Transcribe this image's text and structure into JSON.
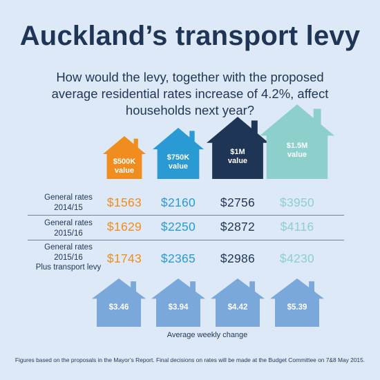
{
  "title": "Auckland’s transport levy",
  "subtitle": "How would the levy, together with the proposed average residential rates increase of 4.2%, affect households next year?",
  "colors": {
    "background": "#dde9f6",
    "text": "#1f3556",
    "weekly_house": "#7ba8da"
  },
  "chart_data": {
    "type": "table",
    "categories": [
      "$500K value",
      "$750K value",
      "$1M value",
      "$1.5M value"
    ],
    "category_lines": [
      [
        "$500K",
        "value"
      ],
      [
        "$750K",
        "value"
      ],
      [
        "$1M",
        "value"
      ],
      [
        "$1.5M",
        "value"
      ]
    ],
    "category_colors": [
      "#f08d1e",
      "#2a9ad4",
      "#1f3556",
      "#8ccfcb"
    ],
    "rows": [
      {
        "label_lines": [
          "General rates",
          "2014/15"
        ],
        "values": [
          "$1563",
          "$2160",
          "$2756",
          "$3950"
        ]
      },
      {
        "label_lines": [
          "General rates",
          "2015/16"
        ],
        "values": [
          "$1629",
          "$2250",
          "$2872",
          "$4116"
        ]
      },
      {
        "label_lines": [
          "General rates",
          "2015/16",
          "Plus transport levy"
        ],
        "values": [
          "$1743",
          "$2365",
          "$2986",
          "$4230"
        ]
      }
    ],
    "weekly_change": {
      "label": "Average weekly change",
      "values": [
        "$3.46",
        "$3.94",
        "$4.42",
        "$5.39"
      ]
    }
  },
  "footnote": "Figures based on the proposals in the Mayor’s Report. Final decisions on rates will be made at the Budget Committee on 7&8 May 2015."
}
